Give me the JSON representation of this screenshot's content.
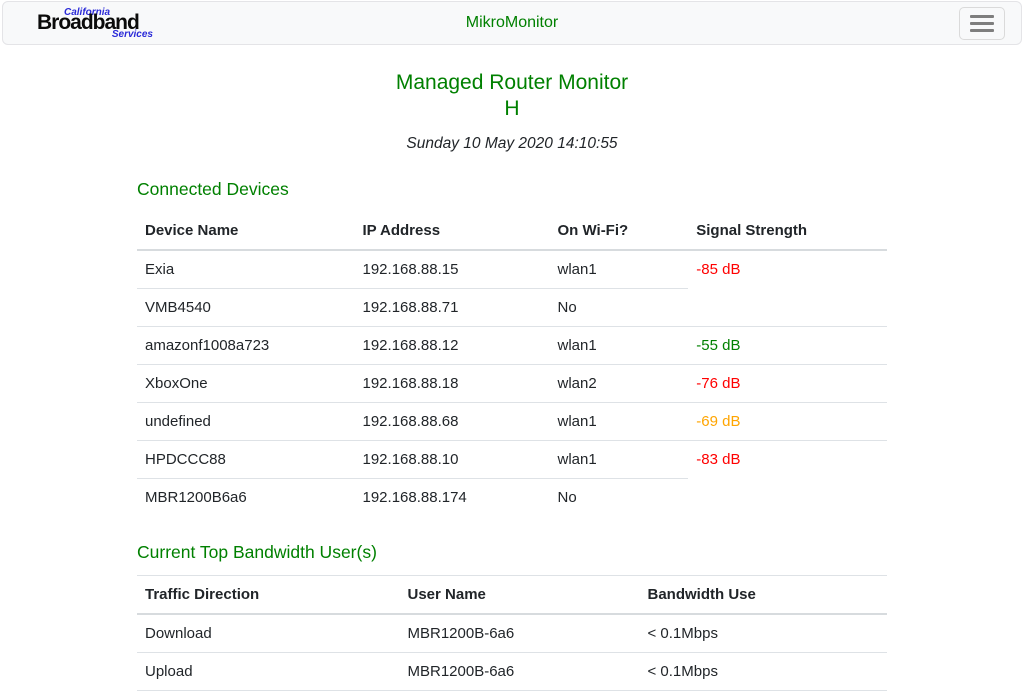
{
  "colors": {
    "accent_green": "#008000",
    "signal_red": "#ff0000",
    "signal_green": "#008000",
    "signal_orange": "#ffa500",
    "navbar_bg": "#f8f9fa"
  },
  "navbar": {
    "logo": {
      "top": "California",
      "main": "Broadband",
      "bottom": "Services"
    },
    "title": "MikroMonitor"
  },
  "page": {
    "title_line1": "Managed Router Monitor",
    "title_line2": "H",
    "timestamp": "Sunday 10 May 2020 14:10:55"
  },
  "devices_section": {
    "heading": "Connected Devices",
    "columns": [
      "Device Name",
      "IP Address",
      "On Wi-Fi?",
      "Signal Strength"
    ],
    "rows": [
      {
        "name": "Exia",
        "ip": "192.168.88.15",
        "wifi": "wlan1",
        "signal": "-85 dB",
        "tone": "red"
      },
      {
        "name": "VMB4540",
        "ip": "192.168.88.71",
        "wifi": "No",
        "signal": "",
        "tone": ""
      },
      {
        "name": "amazonf1008a723",
        "ip": "192.168.88.12",
        "wifi": "wlan1",
        "signal": "-55 dB",
        "tone": "green"
      },
      {
        "name": "XboxOne",
        "ip": "192.168.88.18",
        "wifi": "wlan2",
        "signal": "-76 dB",
        "tone": "red"
      },
      {
        "name": "undefined",
        "ip": "192.168.88.68",
        "wifi": "wlan1",
        "signal": "-69 dB",
        "tone": "orange"
      },
      {
        "name": "HPDCCC88",
        "ip": "192.168.88.10",
        "wifi": "wlan1",
        "signal": "-83 dB",
        "tone": "red"
      },
      {
        "name": "MBR1200B6a6",
        "ip": "192.168.88.174",
        "wifi": "No",
        "signal": "",
        "tone": ""
      }
    ]
  },
  "bandwidth_section": {
    "heading": "Current Top Bandwidth User(s)",
    "columns": [
      "Traffic Direction",
      "User Name",
      "Bandwidth Use"
    ],
    "rows": [
      {
        "direction": "Download",
        "user": "MBR1200B-6a6",
        "bandwidth": "< 0.1Mbps"
      },
      {
        "direction": "Upload",
        "user": "MBR1200B-6a6",
        "bandwidth": "< 0.1Mbps"
      }
    ]
  }
}
